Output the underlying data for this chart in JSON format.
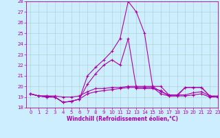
{
  "x": [
    0,
    1,
    2,
    3,
    4,
    5,
    6,
    7,
    8,
    9,
    10,
    11,
    12,
    13,
    14,
    15,
    16,
    17,
    18,
    19,
    20,
    21,
    22,
    23
  ],
  "line1": [
    19.3,
    19.1,
    19.1,
    19.0,
    18.5,
    18.6,
    18.8,
    19.3,
    19.5,
    19.6,
    19.7,
    19.8,
    19.9,
    19.9,
    19.9,
    19.9,
    19.3,
    19.1,
    19.1,
    19.1,
    19.2,
    19.3,
    19.0,
    19.0
  ],
  "line2": [
    19.3,
    19.1,
    19.1,
    19.1,
    19.0,
    19.0,
    19.1,
    19.5,
    19.8,
    19.8,
    19.9,
    19.9,
    20.0,
    20.0,
    20.0,
    20.0,
    19.5,
    19.2,
    19.2,
    19.2,
    19.4,
    19.5,
    19.1,
    19.1
  ],
  "line3": [
    19.3,
    19.1,
    19.0,
    19.0,
    18.5,
    18.6,
    18.8,
    21.0,
    21.8,
    22.5,
    23.3,
    24.5,
    28.0,
    27.0,
    25.0,
    20.0,
    20.0,
    19.2,
    19.2,
    19.9,
    19.9,
    19.9,
    19.1,
    19.0
  ],
  "line4": [
    19.3,
    19.1,
    19.0,
    19.0,
    18.5,
    18.6,
    18.8,
    20.2,
    21.2,
    22.0,
    22.5,
    22.0,
    24.5,
    19.8,
    19.8,
    19.8,
    19.6,
    19.1,
    19.1,
    19.9,
    19.9,
    19.9,
    19.1,
    19.0
  ],
  "color": "#aa00aa",
  "bg_color": "#cceeff",
  "grid_color": "#aacccc",
  "ylim": [
    18,
    28
  ],
  "xlim": [
    -0.5,
    23
  ],
  "yticks": [
    18,
    19,
    20,
    21,
    22,
    23,
    24,
    25,
    26,
    27,
    28
  ],
  "xticks": [
    0,
    1,
    2,
    3,
    4,
    5,
    6,
    7,
    8,
    9,
    10,
    11,
    12,
    13,
    14,
    15,
    16,
    17,
    18,
    19,
    20,
    21,
    22,
    23
  ],
  "xlabel": "Windchill (Refroidissement éolien,°C)",
  "marker": "+",
  "markersize": 3,
  "linewidth": 0.8,
  "label_fontsize": 5.5,
  "tick_fontsize": 5.0
}
